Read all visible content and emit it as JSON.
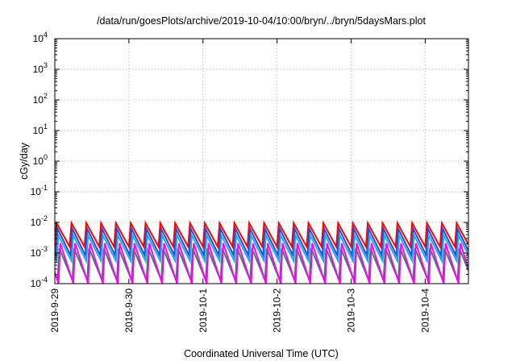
{
  "chart_data": {
    "type": "line",
    "title": "/data/run/goesPlots/archive/2019-10-04/10:00/bryn/../bryn/5daysMars.plot",
    "xlabel": "Coordinated Universal Time (UTC)",
    "ylabel": "cGy/day",
    "yscale": "log",
    "ylim": [
      0.0001,
      10000
    ],
    "y_ticks": [
      {
        "value": 0.0001,
        "base": "10",
        "exp": "-4"
      },
      {
        "value": 0.001,
        "base": "10",
        "exp": "-3"
      },
      {
        "value": 0.01,
        "base": "10",
        "exp": "-2"
      },
      {
        "value": 0.1,
        "base": "10",
        "exp": "-1"
      },
      {
        "value": 1,
        "base": "10",
        "exp": "0"
      },
      {
        "value": 10,
        "base": "10",
        "exp": "1"
      },
      {
        "value": 100,
        "base": "10",
        "exp": "2"
      },
      {
        "value": 1000,
        "base": "10",
        "exp": "3"
      },
      {
        "value": 10000,
        "base": "10",
        "exp": "4"
      }
    ],
    "xlim": [
      "2019-09-29T00:00",
      "2019-10-04T14:00"
    ],
    "x_ticks": [
      {
        "value": "2019-09-29T00:00",
        "label": "2019-9-29"
      },
      {
        "value": "2019-09-30T00:00",
        "label": "2019-9-30"
      },
      {
        "value": "2019-10-01T00:00",
        "label": "2019-10-1"
      },
      {
        "value": "2019-10-02T00:00",
        "label": "2019-10-2"
      },
      {
        "value": "2019-10-03T00:00",
        "label": "2019-10-3"
      },
      {
        "value": "2019-10-04T00:00",
        "label": "2019-10-4"
      }
    ],
    "grid": true,
    "cycle_hours": 4.8,
    "series": [
      {
        "color": "#ff0000",
        "peak": 0.0095,
        "trough": 0.0016,
        "phase_hours": 0.0
      },
      {
        "color": "#1f4fe0",
        "peak": 0.0062,
        "trough": 0.00085,
        "phase_hours": 0.3
      },
      {
        "color": "#2aa5e8",
        "peak": 0.0038,
        "trough": 0.00055,
        "phase_hours": 0.6
      },
      {
        "color": "#2e8b57",
        "peak": 0.0014,
        "trough": 0.00013,
        "phase_hours": 0.9
      },
      {
        "color": "#ff00ff",
        "peak": 0.0021,
        "trough": 0.0001,
        "phase_hours": 1.2
      }
    ]
  }
}
